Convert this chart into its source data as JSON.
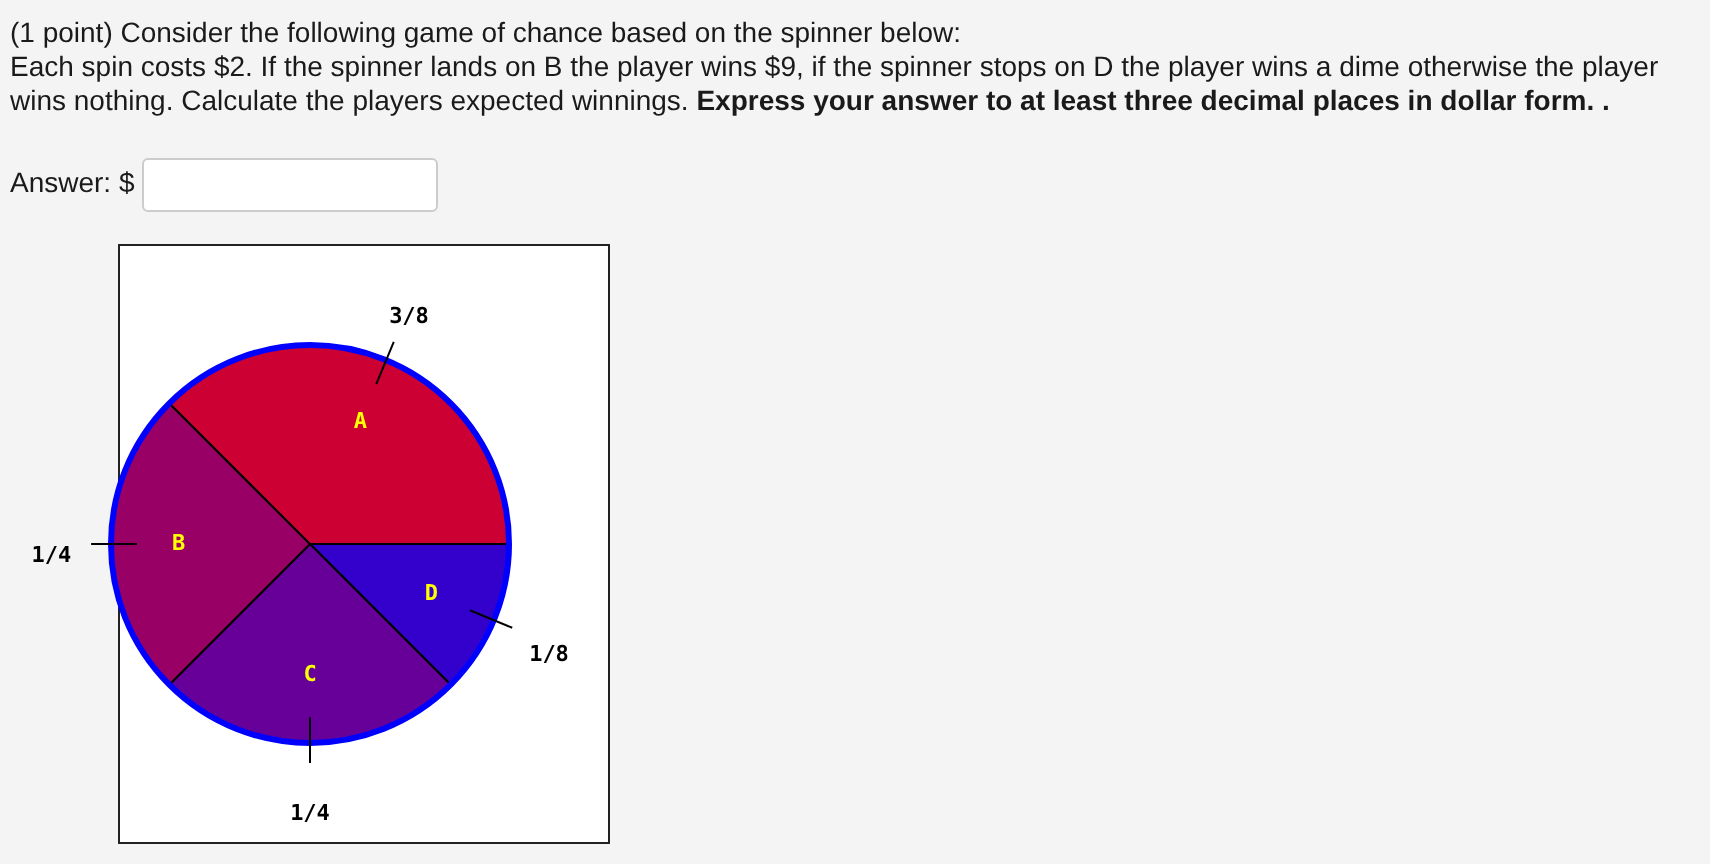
{
  "chart_data": {
    "type": "pie",
    "title": "(1 point) Consider the following game of chance based on the spinner below:",
    "annotations": [
      "Each spin costs $2. If the spinner lands on B the player wins $9, if the spinner stops on D the player wins a dime otherwise the player",
      "wins nothing. Calculate the players expected winnings.",
      "Express your answer to at least three decimal places in dollar form. .",
      "Answer: $"
    ],
    "categories": [
      "A",
      "B",
      "C",
      "D"
    ],
    "values": [
      0.375,
      0.25,
      0.25,
      0.125
    ],
    "colors": [
      "#cc0033",
      "#990066",
      "#660099",
      "#3300cc"
    ],
    "value_labels": [
      "3/8",
      "1/4",
      "1/4",
      "1/8"
    ]
  }
}
